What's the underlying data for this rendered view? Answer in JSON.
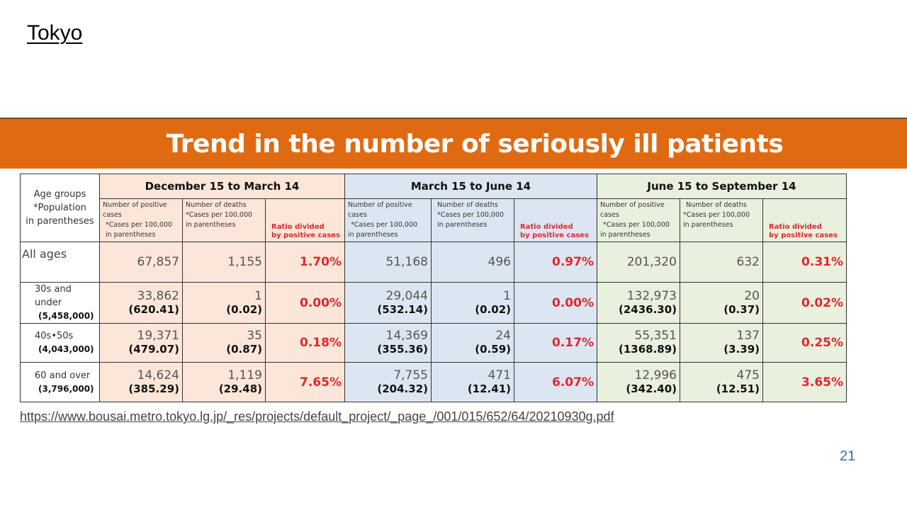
{
  "slide": {
    "title": "Tokyo",
    "banner": "Trend in the number of seriously ill patients",
    "source_url": "https://www.bousai.metro.tokyo.lg.jp/_res/projects/default_project/_page_/001/015/652/64/20210930g.pdf",
    "page_number": "21"
  },
  "colors": {
    "banner": "#e06a12",
    "ratio_text": "#e0282e",
    "period_1_bg": "#fbe6d9",
    "period_2_bg": "#dce6f3",
    "period_3_bg": "#e9f0de",
    "page_number": "#3a6fb0"
  },
  "table": {
    "age_header": {
      "line1": "Age groups",
      "line2": "*Population",
      "line3": "in parentheses"
    },
    "periods": [
      {
        "label": "December 15 to March 14"
      },
      {
        "label": "March 15 to June 14"
      },
      {
        "label": "June 15 to September 14"
      }
    ],
    "column_headers": {
      "positive": {
        "line1": "Number of positive cases",
        "line2": "*Cases per 100,000",
        "line3": "in parentheses"
      },
      "deaths": {
        "line1": "Number of deaths",
        "line2": "*Cases per 100,000",
        "line3": "in parentheses"
      },
      "ratio": {
        "line1": "Ratio divided",
        "line2": "by positive cases"
      }
    },
    "rows": [
      {
        "age": "All ages",
        "population": "",
        "p1": {
          "positive": "67,857",
          "deaths": "1,155",
          "ratio": "1.70%"
        },
        "p2": {
          "positive": "51,168",
          "deaths": "496",
          "ratio": "0.97%"
        },
        "p3": {
          "positive": "201,320",
          "deaths": "632",
          "ratio": "0.31%"
        }
      },
      {
        "age": "30s and under",
        "population": "(5,458,000)",
        "p1": {
          "positive": "33,862",
          "positive_rate": "(620.41)",
          "deaths": "1",
          "deaths_rate": "(0.02)",
          "ratio": "0.00%"
        },
        "p2": {
          "positive": "29,044",
          "positive_rate": "(532.14)",
          "deaths": "1",
          "deaths_rate": "(0.02)",
          "ratio": "0.00%"
        },
        "p3": {
          "positive": "132,973",
          "positive_rate": "(2436.30)",
          "deaths": "20",
          "deaths_rate": "(0.37)",
          "ratio": "0.02%"
        }
      },
      {
        "age": "40s•50s",
        "population": "(4,043,000)",
        "p1": {
          "positive": "19,371",
          "positive_rate": "(479.07)",
          "deaths": "35",
          "deaths_rate": "(0.87)",
          "ratio": "0.18%"
        },
        "p2": {
          "positive": "14,369",
          "positive_rate": "(355.36)",
          "deaths": "24",
          "deaths_rate": "(0.59)",
          "ratio": "0.17%"
        },
        "p3": {
          "positive": "55,351",
          "positive_rate": "(1368.89)",
          "deaths": "137",
          "deaths_rate": "(3.39)",
          "ratio": "0.25%"
        }
      },
      {
        "age": "60 and over",
        "population": "(3,796,000)",
        "p1": {
          "positive": "14,624",
          "positive_rate": "(385.29)",
          "deaths": "1,119",
          "deaths_rate": "(29.48)",
          "ratio": "7.65%"
        },
        "p2": {
          "positive": "7,755",
          "positive_rate": "(204.32)",
          "deaths": "471",
          "deaths_rate": "(12.41)",
          "ratio": "6.07%"
        },
        "p3": {
          "positive": "12,996",
          "positive_rate": "(342.40)",
          "deaths": "475",
          "deaths_rate": "(12.51)",
          "ratio": "3.65%"
        }
      }
    ]
  }
}
